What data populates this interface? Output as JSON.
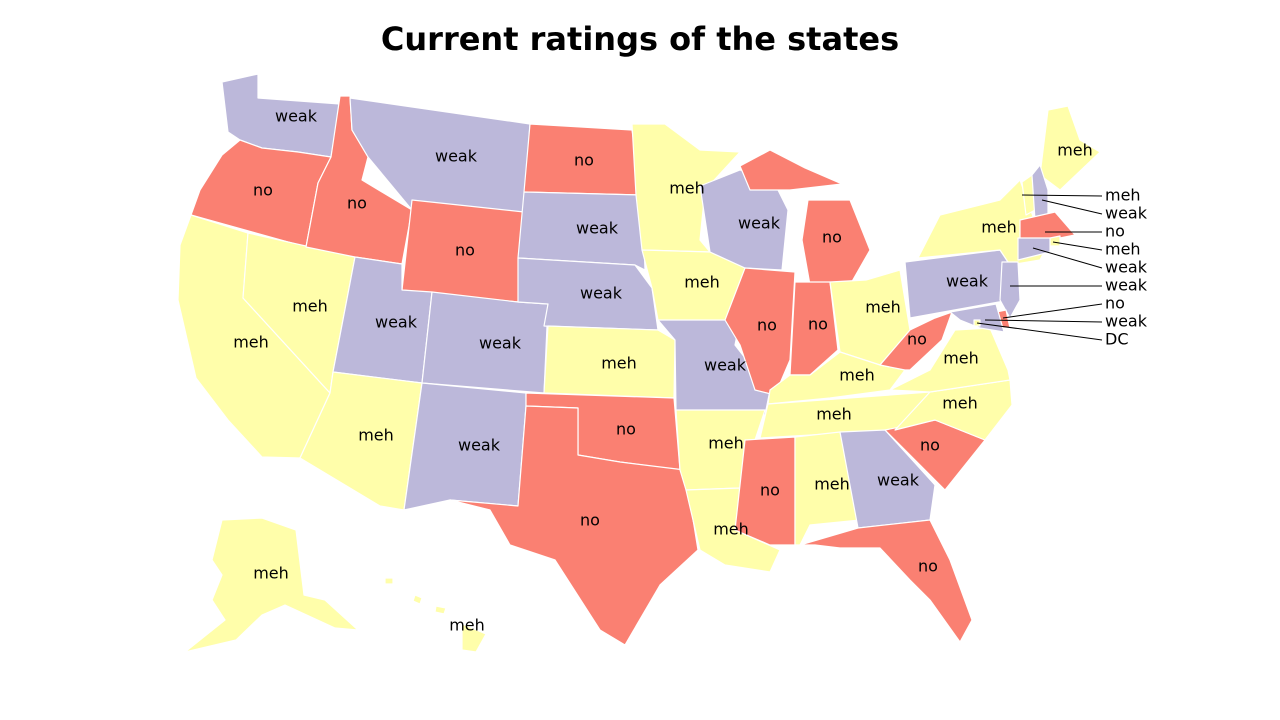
{
  "title": "Current ratings of the states",
  "colors": {
    "no": "#fa8072",
    "weak": "#bcb8da",
    "meh": "#fffeaa",
    "border": "#ffffff"
  },
  "states": [
    {
      "id": "WA",
      "rating": "weak"
    },
    {
      "id": "OR",
      "rating": "no"
    },
    {
      "id": "CA",
      "rating": "meh"
    },
    {
      "id": "NV",
      "rating": "meh"
    },
    {
      "id": "ID",
      "rating": "no"
    },
    {
      "id": "MT",
      "rating": "weak"
    },
    {
      "id": "WY",
      "rating": "no"
    },
    {
      "id": "UT",
      "rating": "weak"
    },
    {
      "id": "CO",
      "rating": "weak"
    },
    {
      "id": "AZ",
      "rating": "meh"
    },
    {
      "id": "NM",
      "rating": "weak"
    },
    {
      "id": "ND",
      "rating": "no"
    },
    {
      "id": "SD",
      "rating": "weak"
    },
    {
      "id": "NE",
      "rating": "weak"
    },
    {
      "id": "KS",
      "rating": "meh"
    },
    {
      "id": "OK",
      "rating": "no"
    },
    {
      "id": "TX",
      "rating": "no"
    },
    {
      "id": "MN",
      "rating": "meh"
    },
    {
      "id": "IA",
      "rating": "meh"
    },
    {
      "id": "MO",
      "rating": "weak"
    },
    {
      "id": "AR",
      "rating": "meh"
    },
    {
      "id": "LA",
      "rating": "meh"
    },
    {
      "id": "WI",
      "rating": "weak"
    },
    {
      "id": "IL",
      "rating": "no"
    },
    {
      "id": "MI",
      "rating": "no"
    },
    {
      "id": "IN",
      "rating": "no"
    },
    {
      "id": "OH",
      "rating": "meh"
    },
    {
      "id": "KY",
      "rating": "meh"
    },
    {
      "id": "TN",
      "rating": "meh"
    },
    {
      "id": "MS",
      "rating": "no"
    },
    {
      "id": "AL",
      "rating": "meh"
    },
    {
      "id": "GA",
      "rating": "weak"
    },
    {
      "id": "FL",
      "rating": "no"
    },
    {
      "id": "SC",
      "rating": "no"
    },
    {
      "id": "NC",
      "rating": "meh"
    },
    {
      "id": "VA",
      "rating": "meh"
    },
    {
      "id": "WV",
      "rating": "no"
    },
    {
      "id": "PA",
      "rating": "weak"
    },
    {
      "id": "NY",
      "rating": "meh"
    },
    {
      "id": "ME",
      "rating": "meh"
    },
    {
      "id": "AK",
      "rating": "meh"
    },
    {
      "id": "HI",
      "rating": "meh"
    },
    {
      "id": "VT",
      "rating": "meh"
    },
    {
      "id": "NH",
      "rating": "weak"
    },
    {
      "id": "MA",
      "rating": "no"
    },
    {
      "id": "RI",
      "rating": "meh"
    },
    {
      "id": "CT",
      "rating": "weak"
    },
    {
      "id": "NJ",
      "rating": "weak"
    },
    {
      "id": "DE",
      "rating": "no"
    },
    {
      "id": "MD",
      "rating": "weak"
    },
    {
      "id": "DC",
      "rating": "meh"
    }
  ],
  "callout_labels": [
    {
      "state": "VT",
      "text": "meh"
    },
    {
      "state": "NH",
      "text": "weak"
    },
    {
      "state": "MA",
      "text": "no"
    },
    {
      "state": "RI",
      "text": "meh"
    },
    {
      "state": "CT",
      "text": "weak"
    },
    {
      "state": "NJ",
      "text": "weak"
    },
    {
      "state": "DE",
      "text": "no"
    },
    {
      "state": "MD",
      "text": "weak"
    },
    {
      "state": "DC",
      "text": "DC"
    }
  ]
}
